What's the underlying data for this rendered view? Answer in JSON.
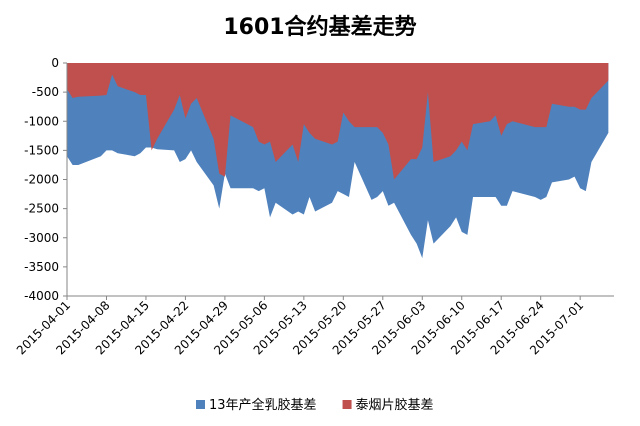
{
  "chart_data": {
    "type": "area",
    "title": "1601合约基差走势",
    "xlabel": "",
    "ylabel": "",
    "ylim": [
      -4000,
      0
    ],
    "yticks": [
      0,
      -500,
      -1000,
      -1500,
      -2000,
      -2500,
      -3000,
      -3500,
      -4000
    ],
    "xtick_labels": [
      "2015-04-01",
      "2015-04-08",
      "2015-04-15",
      "2015-04-22",
      "2015-04-29",
      "2015-05-06",
      "2015-05-13",
      "2015-05-20",
      "2015-05-27",
      "2015-06-03",
      "2015-06-10",
      "2015-06-17",
      "2015-06-24",
      "2015-07-01"
    ],
    "x": [
      "2015-04-01",
      "2015-04-02",
      "2015-04-03",
      "2015-04-07",
      "2015-04-08",
      "2015-04-09",
      "2015-04-10",
      "2015-04-13",
      "2015-04-14",
      "2015-04-15",
      "2015-04-16",
      "2015-04-17",
      "2015-04-20",
      "2015-04-21",
      "2015-04-22",
      "2015-04-23",
      "2015-04-24",
      "2015-04-27",
      "2015-04-28",
      "2015-04-29",
      "2015-04-30",
      "2015-05-04",
      "2015-05-05",
      "2015-05-06",
      "2015-05-07",
      "2015-05-08",
      "2015-05-11",
      "2015-05-12",
      "2015-05-13",
      "2015-05-14",
      "2015-05-15",
      "2015-05-18",
      "2015-05-19",
      "2015-05-20",
      "2015-05-21",
      "2015-05-22",
      "2015-05-25",
      "2015-05-26",
      "2015-05-27",
      "2015-05-28",
      "2015-05-29",
      "2015-06-01",
      "2015-06-02",
      "2015-06-03",
      "2015-06-04",
      "2015-06-05",
      "2015-06-08",
      "2015-06-09",
      "2015-06-10",
      "2015-06-11",
      "2015-06-12",
      "2015-06-15",
      "2015-06-16",
      "2015-06-17",
      "2015-06-18",
      "2015-06-19",
      "2015-06-23",
      "2015-06-24",
      "2015-06-25",
      "2015-06-26",
      "2015-06-29",
      "2015-06-30",
      "2015-07-01",
      "2015-07-02",
      "2015-07-03",
      "2015-07-06"
    ],
    "series": [
      {
        "name": "13年产全乳胶基差",
        "color": "#4F81BD",
        "values": [
          -1600,
          -1750,
          -1750,
          -1600,
          -1500,
          -1500,
          -1550,
          -1600,
          -1550,
          -1450,
          -1450,
          -1480,
          -1500,
          -1700,
          -1650,
          -1500,
          -1700,
          -2100,
          -2500,
          -1900,
          -2150,
          -2150,
          -2200,
          -2150,
          -2650,
          -2400,
          -2600,
          -2550,
          -2600,
          -2300,
          -2550,
          -2400,
          -2200,
          -2250,
          -2300,
          -1700,
          -2350,
          -2300,
          -2200,
          -2450,
          -2400,
          -2950,
          -3100,
          -3350,
          -2700,
          -3100,
          -2800,
          -2650,
          -2900,
          -2950,
          -2300,
          -2300,
          -2300,
          -2450,
          -2450,
          -2200,
          -2300,
          -2350,
          -2300,
          -2050,
          -2000,
          -1950,
          -2150,
          -2200,
          -1700,
          -1200
        ]
      },
      {
        "name": "泰烟片胶基差",
        "color": "#C0504D",
        "values": [
          -450,
          -600,
          -580,
          -560,
          -550,
          -200,
          -400,
          -500,
          -550,
          -550,
          -1500,
          -1300,
          -800,
          -550,
          -950,
          -700,
          -600,
          -1300,
          -1900,
          -1950,
          -900,
          -1100,
          -1350,
          -1400,
          -1350,
          -1700,
          -1400,
          -1700,
          -1050,
          -1200,
          -1300,
          -1400,
          -1350,
          -850,
          -1000,
          -1100,
          -1100,
          -1100,
          -1200,
          -1400,
          -2000,
          -1650,
          -1650,
          -1450,
          -500,
          -1700,
          -1600,
          -1500,
          -1350,
          -1500,
          -1050,
          -1000,
          -900,
          -1250,
          -1050,
          -1000,
          -1100,
          -1100,
          -1100,
          -700,
          -750,
          -750,
          -800,
          -800,
          -600,
          -300
        ]
      }
    ],
    "legend_position": "bottom",
    "grid": false
  }
}
